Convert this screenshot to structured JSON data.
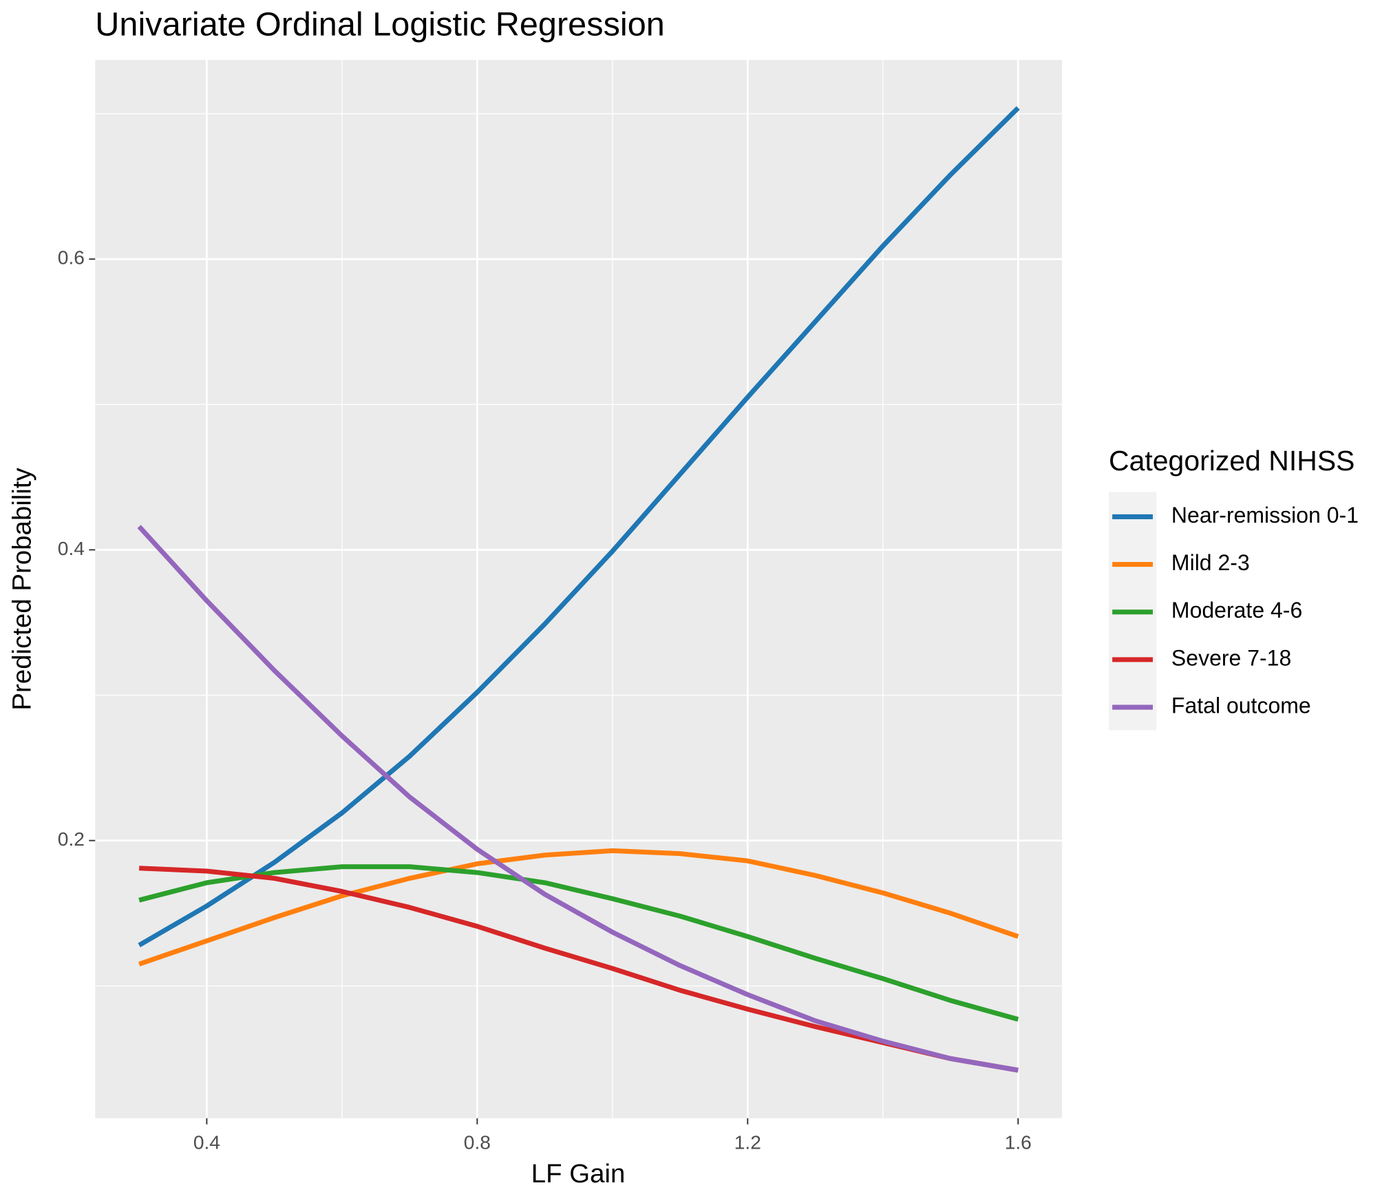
{
  "chart_data": {
    "type": "line",
    "title": "Univariate Ordinal Logistic Regression",
    "x_label": "LF Gain",
    "y_label": "Predicted Probability",
    "legend_title": "Categorized NIHSS",
    "legend": "right",
    "grid": true,
    "x": [
      0.3,
      0.4,
      0.5,
      0.6,
      0.7,
      0.8,
      0.9,
      1.0,
      1.1,
      1.2,
      1.3,
      1.4,
      1.5,
      1.6
    ],
    "xlim": [
      0.235,
      1.665
    ],
    "xticks": [
      0.4,
      0.8,
      1.2,
      1.6
    ],
    "ylim": [
      0.009,
      0.737
    ],
    "yticks": [
      0.2,
      0.4,
      0.6
    ],
    "series": [
      {
        "name": "Near-remission 0-1",
        "color": "#1f77b4",
        "values": [
          0.128,
          0.155,
          0.185,
          0.219,
          0.258,
          0.302,
          0.349,
          0.399,
          0.452,
          0.505,
          0.557,
          0.609,
          0.658,
          0.704
        ]
      },
      {
        "name": "Mild 2-3",
        "color": "#ff7f0e",
        "values": [
          0.115,
          0.131,
          0.147,
          0.162,
          0.174,
          0.184,
          0.19,
          0.193,
          0.191,
          0.186,
          0.176,
          0.164,
          0.15,
          0.134
        ]
      },
      {
        "name": "Moderate 4-6",
        "color": "#2ca02c",
        "values": [
          0.159,
          0.171,
          0.178,
          0.182,
          0.182,
          0.178,
          0.171,
          0.16,
          0.148,
          0.134,
          0.119,
          0.105,
          0.09,
          0.077
        ]
      },
      {
        "name": "Severe 7-18",
        "color": "#d62728",
        "values": [
          0.181,
          0.179,
          0.174,
          0.165,
          0.154,
          0.141,
          0.126,
          0.112,
          0.097,
          0.084,
          0.072,
          0.061,
          0.05,
          0.042
        ]
      },
      {
        "name": "Fatal outcome",
        "color": "#9467bd",
        "values": [
          0.416,
          0.365,
          0.317,
          0.272,
          0.23,
          0.194,
          0.163,
          0.137,
          0.114,
          0.094,
          0.076,
          0.062,
          0.05,
          0.042
        ]
      }
    ]
  }
}
